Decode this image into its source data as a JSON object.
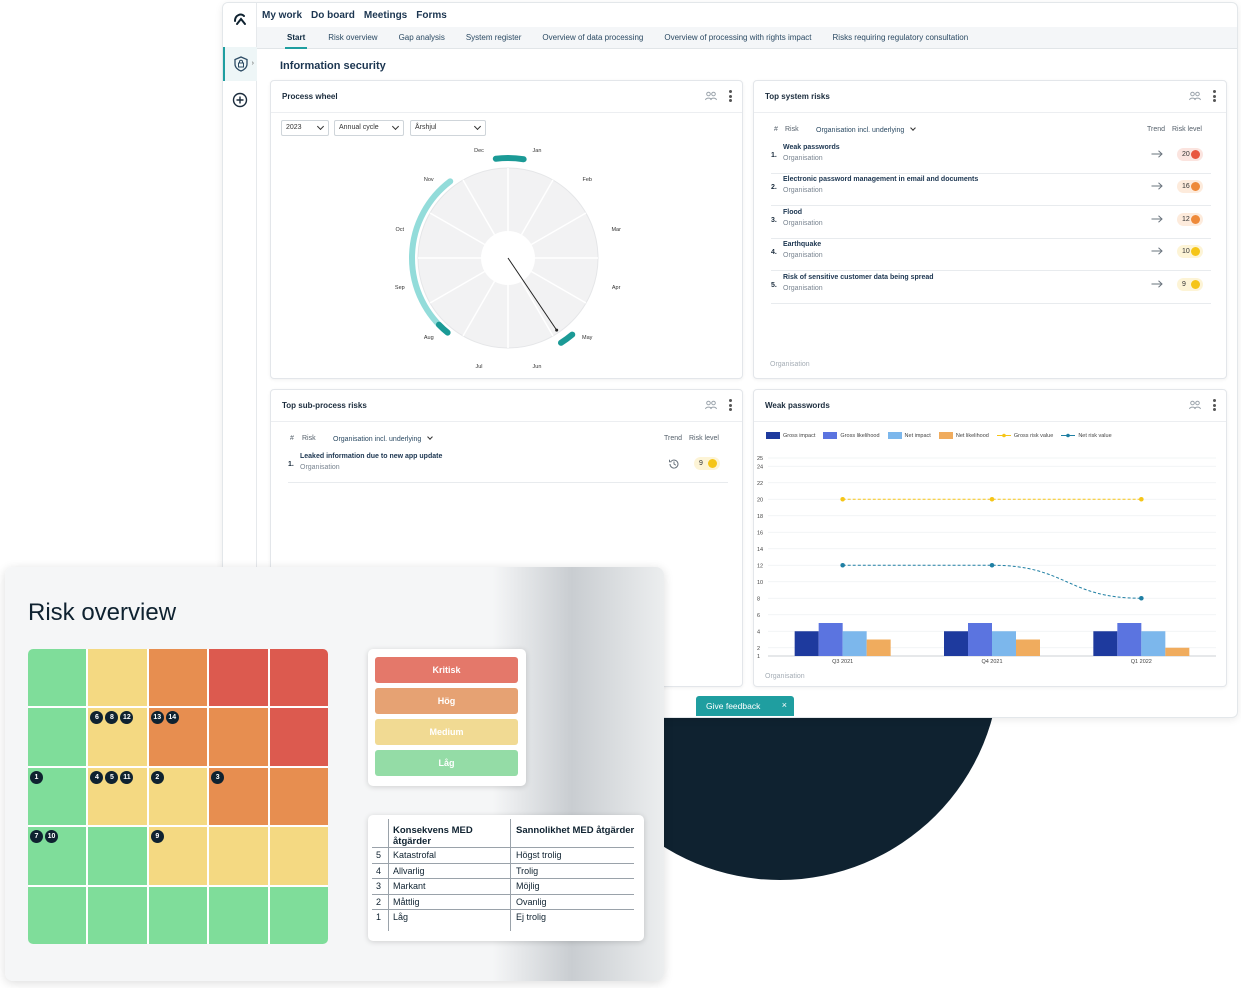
{
  "app": {
    "logo_icon": "app-logo-icon",
    "rail_icons": [
      "shield-lock-icon",
      "chevron-right-icon",
      "plus-circle-icon"
    ],
    "topnav": [
      "My work",
      "Do board",
      "Meetings",
      "Forms"
    ],
    "tabs": [
      "Start",
      "Risk overview",
      "Gap analysis",
      "System register",
      "Overview of data processing",
      "Overview of processing with rights impact",
      "Risks requiring regulatory consultation"
    ],
    "active_tab": "Start",
    "section_title": "Information security",
    "feedback_label": "Give feedback",
    "feedback_close": "×",
    "accent_color": "#1f9ea0"
  },
  "process_wheel": {
    "title": "Process wheel",
    "filters": [
      "2023",
      "Annual cycle",
      "Årshjul"
    ],
    "months": [
      "Jan",
      "Feb",
      "Mar",
      "Apr",
      "May",
      "Jun",
      "Jul",
      "Aug",
      "Sep",
      "Oct",
      "Nov",
      "Dec"
    ]
  },
  "top_system_risks": {
    "title": "Top system risks",
    "col_num": "#",
    "col_risk": "Risk",
    "col_org": "Organisation incl. underlying",
    "col_trend": "Trend",
    "col_level": "Risk level",
    "rows": [
      {
        "num": "1.",
        "name": "Weak passwords",
        "org": "Organisation",
        "level": "20",
        "color": "#e8573f",
        "bg": "#fbe4df"
      },
      {
        "num": "2.",
        "name": "Electronic password management in email and documents",
        "org": "Organisation",
        "level": "16",
        "color": "#ee8a3a",
        "bg": "#fdebdc"
      },
      {
        "num": "3.",
        "name": "Flood",
        "org": "Organisation",
        "level": "12",
        "color": "#ee8a3a",
        "bg": "#fdebdc"
      },
      {
        "num": "4.",
        "name": "Earthquake",
        "org": "Organisation",
        "level": "10",
        "color": "#f5c518",
        "bg": "#fdf4d6"
      },
      {
        "num": "5.",
        "name": "Risk of sensitive customer data being spread",
        "org": "Organisation",
        "level": "9",
        "color": "#f5c518",
        "bg": "#fdf4d6"
      }
    ],
    "footer": "Organisation"
  },
  "top_subprocess_risks": {
    "title": "Top sub-process risks",
    "col_num": "#",
    "col_risk": "Risk",
    "col_org": "Organisation incl. underlying",
    "col_trend": "Trend",
    "col_level": "Risk level",
    "rows": [
      {
        "num": "1.",
        "name": "Leaked information due to new app update",
        "org": "Organisation",
        "level": "9",
        "color": "#f5c518",
        "bg": "#fdf4d6"
      }
    ]
  },
  "weak_passwords_chart": {
    "title": "Weak passwords",
    "footer": "Organisation"
  },
  "chart_data": {
    "type": "bar",
    "title": "Weak passwords",
    "categories": [
      "Q3 2021",
      "Q4 2021",
      "Q1 2022"
    ],
    "ylim": [
      1,
      25
    ],
    "yticks": [
      1,
      2,
      4,
      6,
      8,
      10,
      12,
      14,
      16,
      18,
      20,
      22,
      24,
      25
    ],
    "grid": true,
    "legend_position": "top-left",
    "series": [
      {
        "name": "Gross impact",
        "kind": "bar",
        "color": "#1e3a9e",
        "values": [
          4,
          4,
          4
        ]
      },
      {
        "name": "Gross likelihood",
        "kind": "bar",
        "color": "#5b74e0",
        "values": [
          5,
          5,
          5
        ]
      },
      {
        "name": "Net impact",
        "kind": "bar",
        "color": "#7cb7ec",
        "values": [
          4,
          4,
          4
        ]
      },
      {
        "name": "Net likelihood",
        "kind": "bar",
        "color": "#f0ac5e",
        "values": [
          3,
          3,
          2
        ]
      },
      {
        "name": "Gross risk value",
        "kind": "line",
        "color": "#f5c518",
        "values": [
          20,
          20,
          20
        ]
      },
      {
        "name": "Net risk value",
        "kind": "line",
        "color": "#1f7fa3",
        "values": [
          12,
          12,
          8
        ]
      }
    ]
  },
  "risk_overview": {
    "title": "Risk overview",
    "heatmap_colors": {
      "low": "#7fdd9a",
      "medium": "#f4d982",
      "high": "#e78e50",
      "critical": "#dc5a4f"
    },
    "heatmap": [
      [
        {
          "c": "low",
          "b": []
        },
        {
          "c": "medium",
          "b": []
        },
        {
          "c": "high",
          "b": []
        },
        {
          "c": "critical",
          "b": []
        },
        {
          "c": "critical",
          "b": []
        }
      ],
      [
        {
          "c": "low",
          "b": []
        },
        {
          "c": "medium",
          "b": [
            "6",
            "8",
            "12"
          ]
        },
        {
          "c": "high",
          "b": [
            "13",
            "14"
          ]
        },
        {
          "c": "high",
          "b": []
        },
        {
          "c": "critical",
          "b": []
        }
      ],
      [
        {
          "c": "low",
          "b": [
            "1"
          ]
        },
        {
          "c": "medium",
          "b": [
            "4",
            "5",
            "11"
          ]
        },
        {
          "c": "medium",
          "b": [
            "2"
          ]
        },
        {
          "c": "high",
          "b": [
            "3"
          ]
        },
        {
          "c": "high",
          "b": []
        }
      ],
      [
        {
          "c": "low",
          "b": [
            "7",
            "10"
          ]
        },
        {
          "c": "low",
          "b": []
        },
        {
          "c": "medium",
          "b": [
            "9"
          ]
        },
        {
          "c": "medium",
          "b": []
        },
        {
          "c": "medium",
          "b": []
        }
      ],
      [
        {
          "c": "low",
          "b": []
        },
        {
          "c": "low",
          "b": []
        },
        {
          "c": "low",
          "b": []
        },
        {
          "c": "low",
          "b": []
        },
        {
          "c": "low",
          "b": []
        }
      ]
    ],
    "levels": [
      {
        "label": "Kritisk",
        "color": "#e4786a"
      },
      {
        "label": "Hög",
        "color": "#e6a273"
      },
      {
        "label": "Medium",
        "color": "#f1da93"
      },
      {
        "label": "Låg",
        "color": "#94dca6"
      }
    ],
    "table": {
      "col1": "Konsekvens MED åtgärder",
      "col2": "Sannolikhet MED åtgärder",
      "rows": [
        {
          "n": "5",
          "c": "Katastrofal",
          "s": "Högst trolig"
        },
        {
          "n": "4",
          "c": "Allvarlig",
          "s": "Trolig"
        },
        {
          "n": "3",
          "c": "Markant",
          "s": "Möjlig"
        },
        {
          "n": "2",
          "c": "Måttlig",
          "s": "Ovanlig"
        },
        {
          "n": "1",
          "c": "Låg",
          "s": "Ej trolig"
        }
      ]
    }
  }
}
